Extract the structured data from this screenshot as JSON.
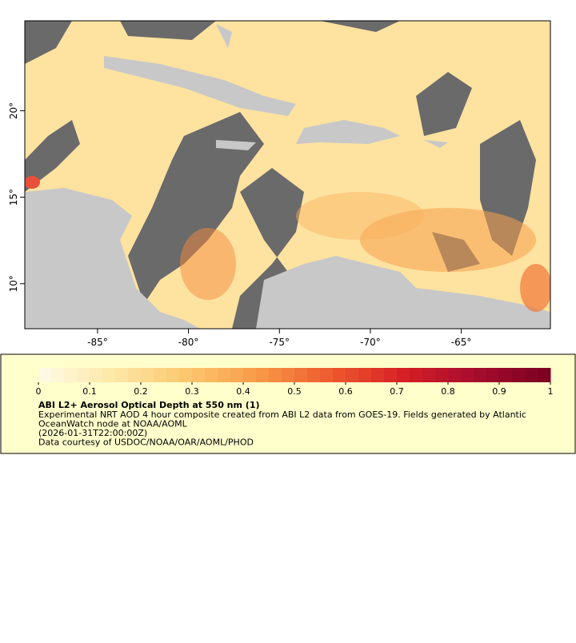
{
  "chart_data": {
    "type": "map",
    "xlim": [
      -89,
      -60.1
    ],
    "ylim": [
      7.4,
      25.2
    ],
    "xticks": [
      {
        "value": -85,
        "label": "-85°"
      },
      {
        "value": -80,
        "label": "-80°"
      },
      {
        "value": -75,
        "label": "-75°"
      },
      {
        "value": -70,
        "label": "-70°"
      },
      {
        "value": -65,
        "label": "-65°"
      }
    ],
    "yticks": [
      {
        "value": 10,
        "label": "10°"
      },
      {
        "value": 15,
        "label": "15°"
      },
      {
        "value": 20,
        "label": "20°"
      }
    ],
    "colorbar": {
      "lim": [
        0,
        1
      ],
      "ticks": [
        0,
        0.1,
        0.2,
        0.3,
        0.4,
        0.5,
        0.6,
        0.7,
        0.8,
        0.9,
        1
      ],
      "colors": [
        "#fffbe6",
        "#fde8a8",
        "#fcc970",
        "#f89a47",
        "#ee5a2e",
        "#d61f26",
        "#a40c2e",
        "#7a0020"
      ]
    },
    "title": "ABI L2+ Aerosol Optical Depth at 550 nm (1)",
    "description": [
      "Experimental NRT AOD 4 hour composite created from ABI L2 data from GOES-19. Fields generated by Atlantic",
      "OceanWatch node at NOAA/AOML",
      "(2026-01-31T22:00:00Z)",
      "Data courtesy of USDOC/NOAA/OAR/AOML/PHOD"
    ]
  }
}
